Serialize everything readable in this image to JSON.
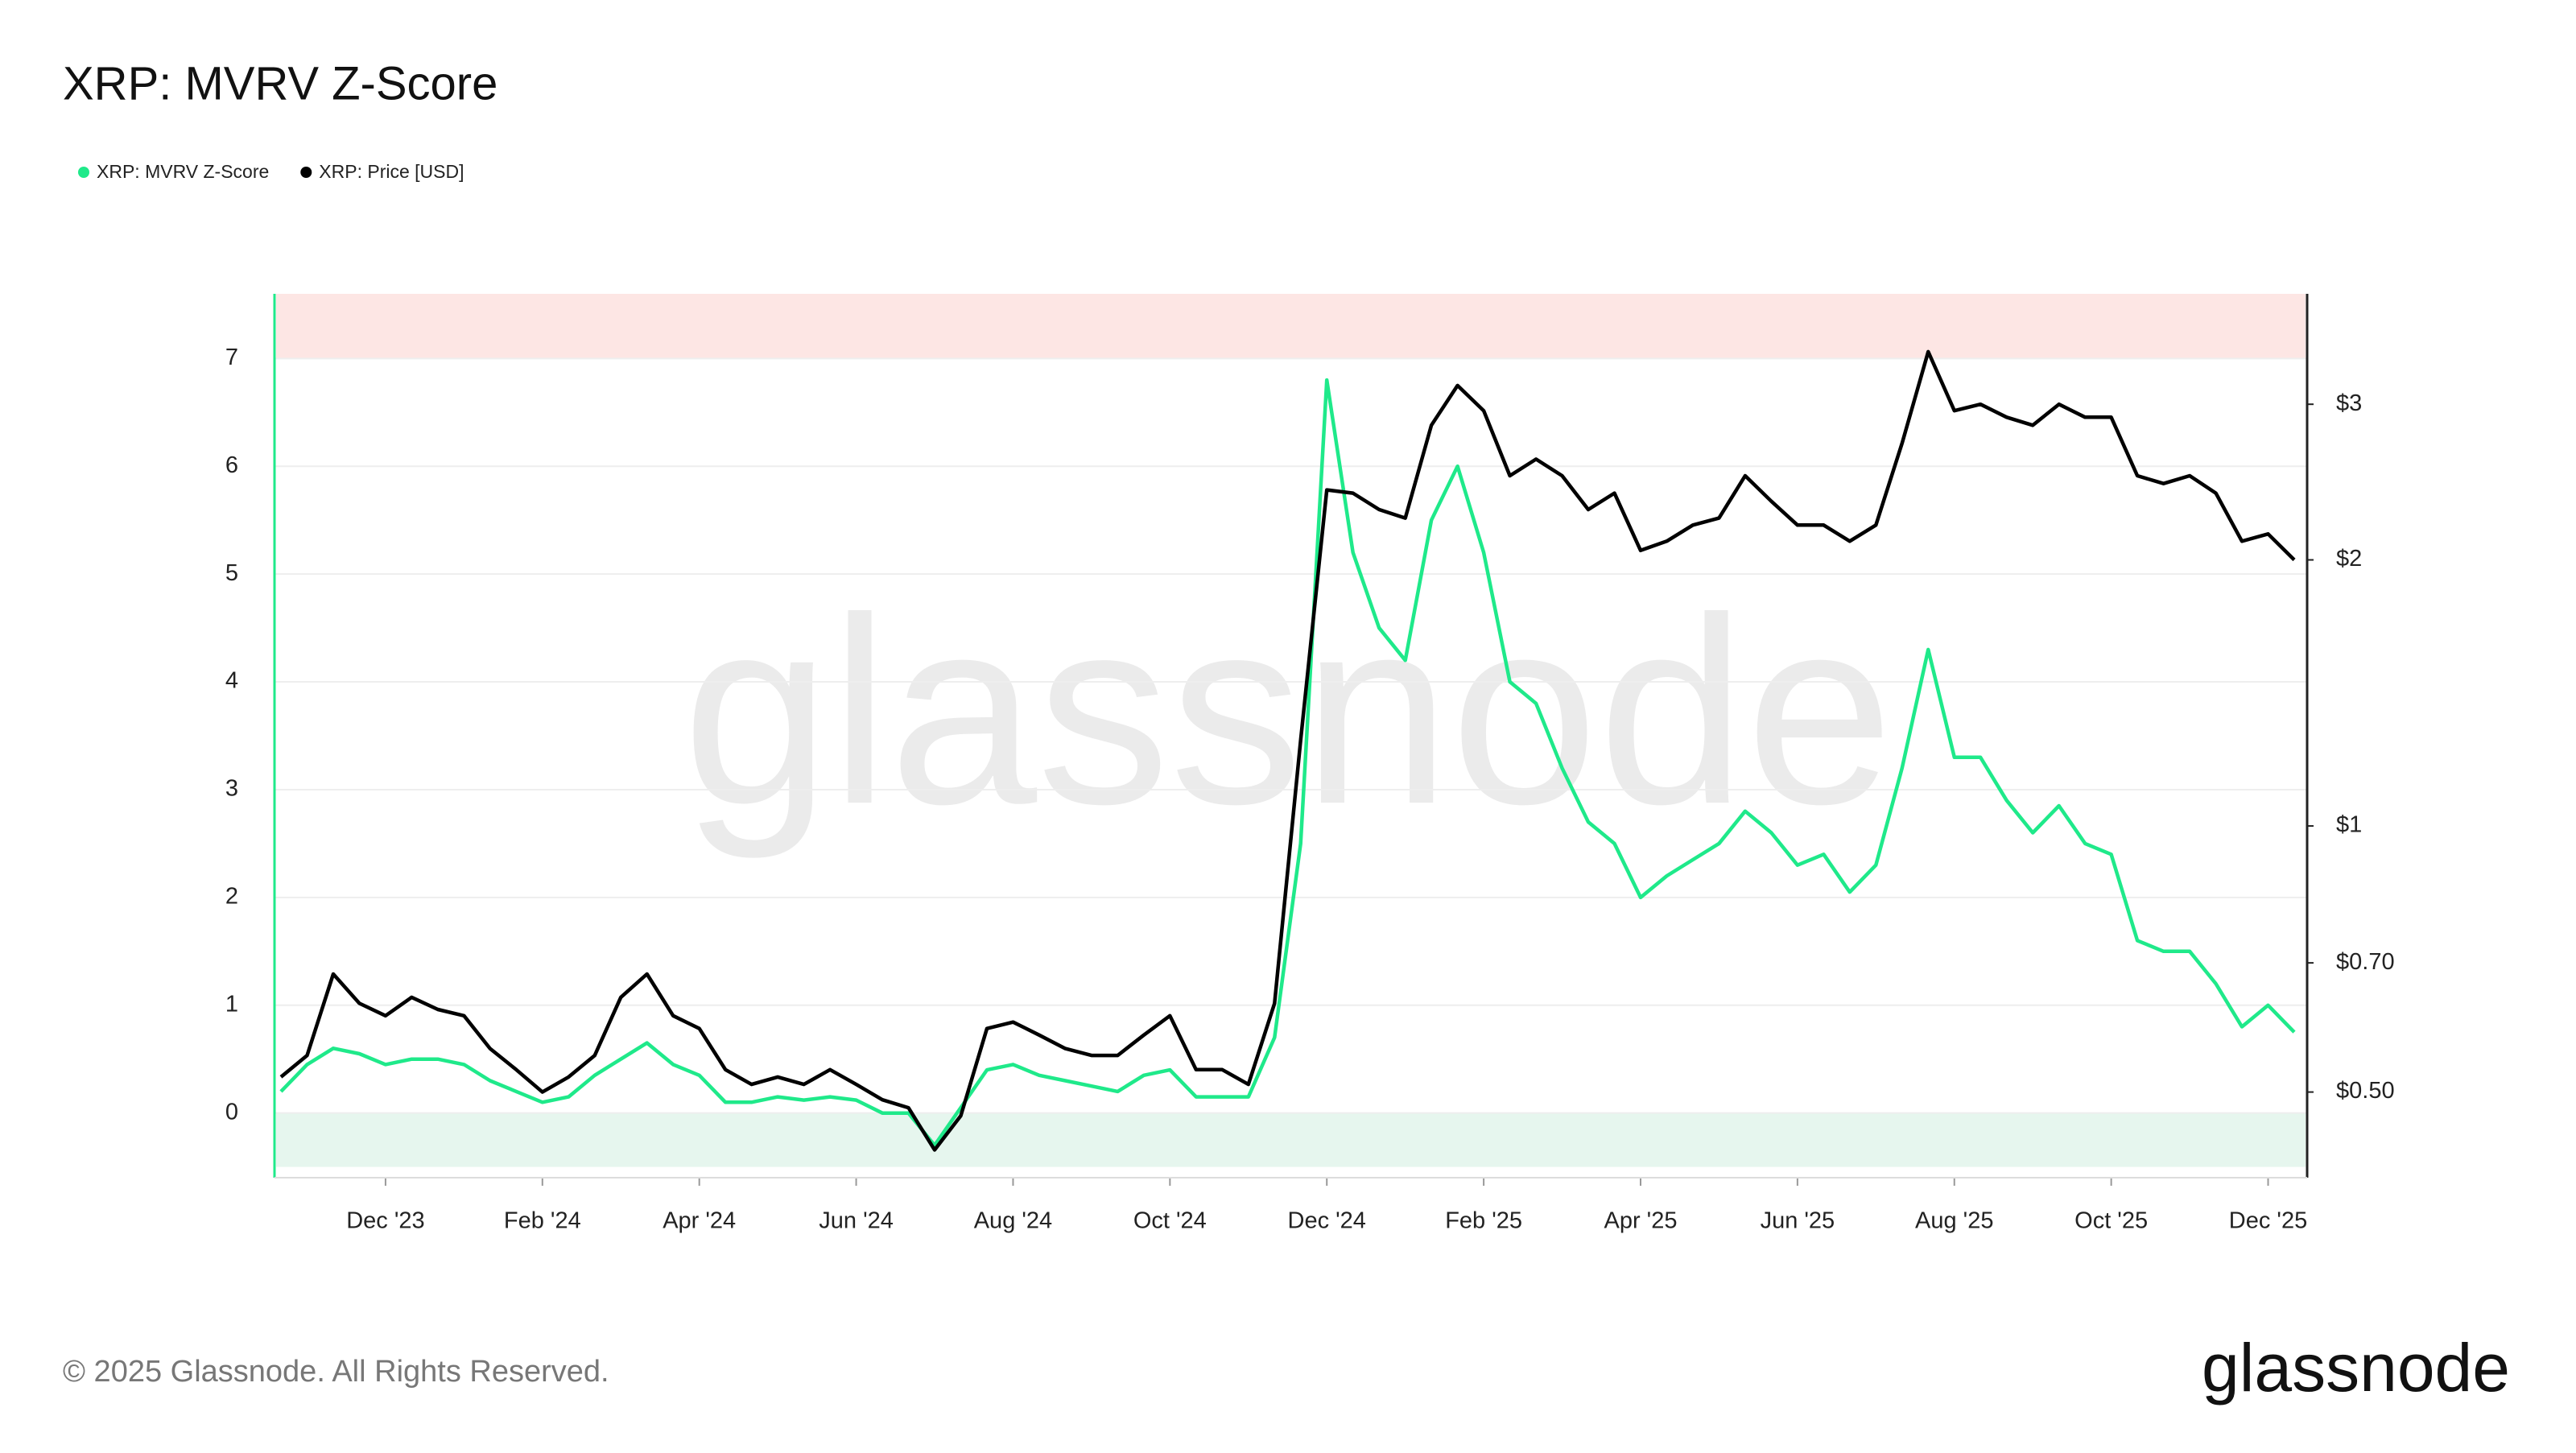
{
  "chart_data": {
    "type": "line",
    "title": "XRP: MVRV Z-Score",
    "watermark": "glassnode",
    "footer": "© 2025 Glassnode. All Rights Reserved.",
    "logo": "glassnode",
    "categories": [
      null,
      null,
      null,
      null,
      "Dec '23",
      null,
      null,
      null,
      null,
      null,
      "Feb '24",
      null,
      null,
      null,
      null,
      null,
      "Apr '24",
      null,
      null,
      null,
      null,
      null,
      "Jun '24",
      null,
      null,
      null,
      null,
      null,
      "Aug '24",
      null,
      null,
      null,
      null,
      null,
      "Oct '24",
      null,
      null,
      null,
      null,
      null,
      "Dec '24",
      null,
      null,
      null,
      null,
      null,
      "Feb '25",
      null,
      null,
      null,
      null,
      null,
      "Apr '25",
      null,
      null,
      null,
      null,
      null,
      "Jun '25",
      null,
      null,
      null,
      null,
      null,
      "Aug '25",
      null,
      null,
      null,
      null,
      null,
      "Oct '25",
      null,
      null,
      null,
      null,
      null,
      "Dec '25",
      null
    ],
    "series": [
      {
        "name": "XRP: MVRV Z-Score",
        "color": "#1fe98a",
        "axis": "y",
        "values": [
          0.2,
          0.45,
          0.6,
          0.55,
          0.45,
          0.5,
          0.5,
          0.45,
          0.3,
          0.2,
          0.1,
          0.15,
          0.35,
          0.5,
          0.65,
          0.45,
          0.35,
          0.1,
          0.1,
          0.15,
          0.12,
          0.15,
          0.12,
          0.0,
          0.0,
          -0.3,
          0.05,
          0.4,
          0.45,
          0.35,
          0.3,
          0.25,
          0.2,
          0.35,
          0.4,
          0.15,
          0.15,
          0.15,
          0.7,
          2.5,
          6.8,
          5.2,
          4.5,
          4.2,
          5.5,
          6.0,
          5.2,
          4.0,
          3.8,
          3.2,
          2.7,
          2.5,
          2.0,
          2.2,
          2.35,
          2.5,
          2.8,
          2.6,
          2.3,
          2.4,
          2.05,
          2.3,
          3.2,
          4.3,
          3.3,
          3.3,
          2.9,
          2.6,
          2.85,
          2.5,
          2.4,
          1.6,
          1.5,
          1.5,
          1.2,
          0.8,
          1.0,
          0.75
        ]
      },
      {
        "name": "XRP: Price [USD]",
        "color": "#000000",
        "axis": "y2",
        "values": [
          0.52,
          0.55,
          0.68,
          0.63,
          0.61,
          0.64,
          0.62,
          0.61,
          0.56,
          0.53,
          0.5,
          0.52,
          0.55,
          0.64,
          0.68,
          0.61,
          0.59,
          0.53,
          0.51,
          0.52,
          0.51,
          0.53,
          0.51,
          0.49,
          0.48,
          0.43,
          0.47,
          0.59,
          0.6,
          0.58,
          0.56,
          0.55,
          0.55,
          0.58,
          0.61,
          0.53,
          0.53,
          0.51,
          0.63,
          1.25,
          2.4,
          2.38,
          2.28,
          2.23,
          2.84,
          3.15,
          2.95,
          2.49,
          2.6,
          2.49,
          2.28,
          2.38,
          2.05,
          2.1,
          2.19,
          2.23,
          2.49,
          2.33,
          2.19,
          2.19,
          2.1,
          2.19,
          2.71,
          3.44,
          2.95,
          3.0,
          2.9,
          2.84,
          3.0,
          2.9,
          2.9,
          2.49,
          2.44,
          2.49,
          2.38,
          2.1,
          2.14,
          2.0
        ]
      }
    ],
    "ylim": [
      -0.6,
      7.6
    ],
    "yticks": [
      0,
      1,
      2,
      3,
      4,
      5,
      6,
      7
    ],
    "y2lim": [
      0.4,
      4
    ],
    "y2scale": "log",
    "y2ticks": [
      {
        "value": 0.5,
        "label": "$0.50"
      },
      {
        "value": 0.7,
        "label": "$0.70"
      },
      {
        "value": 1,
        "label": "$1"
      },
      {
        "value": 2,
        "label": "$2"
      },
      {
        "value": 3,
        "label": "$3"
      }
    ],
    "grid": true,
    "bands": [
      {
        "from": 7,
        "to": 7.6,
        "color": "#fde6e4"
      },
      {
        "from": -0.5,
        "to": 0,
        "color": "#e6f6ee"
      }
    ]
  }
}
